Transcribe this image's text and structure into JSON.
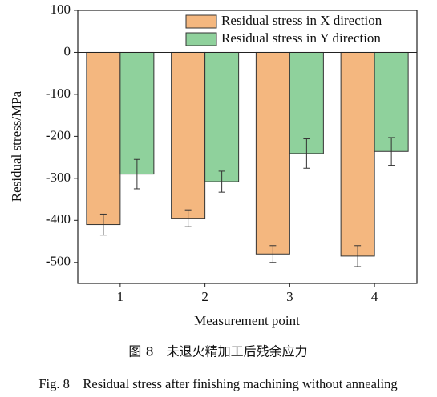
{
  "chart_data": {
    "type": "bar",
    "y_label": "Residual stress/MPa",
    "x_label": "Measurement point",
    "categories": [
      "1",
      "2",
      "3",
      "4"
    ],
    "series": [
      {
        "name": "Residual stress in X direction",
        "color": "#f4b77f",
        "values": [
          -410,
          -395,
          -480,
          -485
        ],
        "errors": [
          25,
          20,
          20,
          25
        ]
      },
      {
        "name": "Residual stress in Y direction",
        "color": "#8fd19c",
        "values": [
          -290,
          -308,
          -241,
          -236
        ],
        "errors": [
          35,
          25,
          35,
          33
        ]
      }
    ],
    "ylim": [
      -550,
      100
    ],
    "yticks": [
      100,
      0,
      -100,
      -200,
      -300,
      -400,
      -500
    ],
    "legend": "upper right",
    "caption_cn": "图 8　未退火精加工后残余应力",
    "caption_en": "Fig. 8　Residual stress after finishing machining without annealing"
  }
}
